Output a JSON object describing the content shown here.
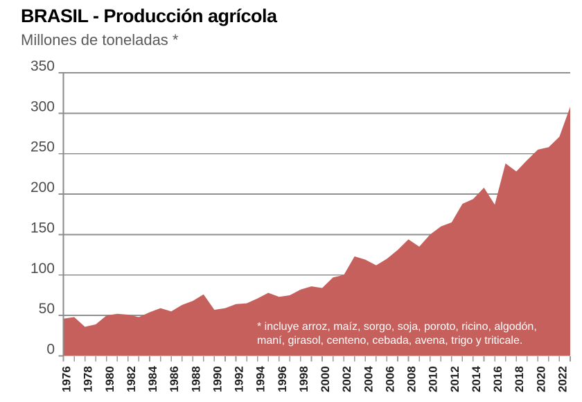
{
  "header": {
    "title": "BRASIL - Producción agrícola",
    "subtitle": "Millones de toneladas *"
  },
  "chart_data": {
    "type": "area",
    "title": "BRASIL - Producción agrícola",
    "ylabel": "Millones de toneladas *",
    "xlabel": "",
    "x": [
      1976,
      1977,
      1978,
      1979,
      1980,
      1981,
      1982,
      1983,
      1984,
      1985,
      1986,
      1987,
      1988,
      1989,
      1990,
      1991,
      1992,
      1993,
      1994,
      1995,
      1996,
      1997,
      1998,
      1999,
      2000,
      2001,
      2002,
      2003,
      2004,
      2005,
      2006,
      2007,
      2008,
      2009,
      2010,
      2011,
      2012,
      2013,
      2014,
      2015,
      2016,
      2017,
      2018,
      2019,
      2020,
      2021,
      2022,
      2023
    ],
    "values": [
      46,
      48,
      36,
      39,
      50,
      52,
      51,
      48,
      54,
      59,
      55,
      63,
      68,
      76,
      57,
      59,
      64,
      65,
      71,
      78,
      73,
      75,
      82,
      86,
      84,
      97,
      100,
      123,
      119,
      112,
      120,
      131,
      144,
      135,
      150,
      160,
      165,
      188,
      194,
      208,
      187,
      238,
      228,
      242,
      255,
      258,
      271,
      308
    ],
    "ylim": [
      0,
      350
    ],
    "y_ticks": [
      0,
      50,
      100,
      150,
      200,
      250,
      300,
      350
    ],
    "x_tick_labels": [
      "1976",
      "1978",
      "1980",
      "1982",
      "1984",
      "1986",
      "1988",
      "1990",
      "1992",
      "1994",
      "1996",
      "1998",
      "2000",
      "2002",
      "2004",
      "2006",
      "2008",
      "2010",
      "2012",
      "2014",
      "2016",
      "2018",
      "2020",
      "2022"
    ],
    "grid": "horizontal",
    "legend_position": "none",
    "footnote_lines": [
      "* incluye arroz, maíz, sorgo, soja, poroto, ricino, algodón,",
      "maní, girasol, centeno, cebada, avena, trigo y triticale."
    ]
  },
  "colors": {
    "area": "#c5605c",
    "grid": "#8f8f8f",
    "axis": "#8a8a8a",
    "tick": "#999999",
    "y_label": "#4b4b4b",
    "x_label": "#1f1f1f",
    "title": "#000000",
    "subtitle": "#595959",
    "footnote": "#ffffff",
    "background": "#ffffff"
  }
}
